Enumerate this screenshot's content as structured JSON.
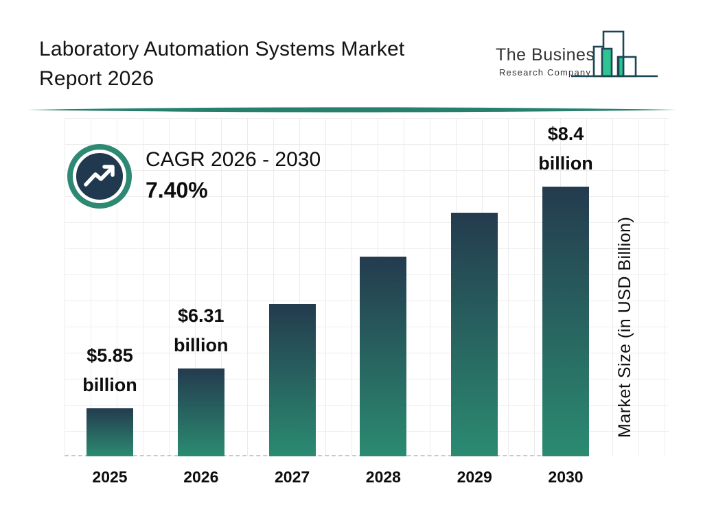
{
  "header": {
    "title_line1": "Laboratory Automation Systems Market",
    "title_line2": "Report 2026",
    "logo": {
      "line1": "The Business",
      "line2": "Research Company"
    }
  },
  "cagr": {
    "label": "CAGR 2026 - 2030",
    "value": "7.40%"
  },
  "chart_data": {
    "type": "bar",
    "title": "Laboratory Automation Systems Market Report 2026",
    "categories": [
      "2025",
      "2026",
      "2027",
      "2028",
      "2029",
      "2030"
    ],
    "values": [
      5.85,
      6.31,
      7.05,
      7.6,
      8.1,
      8.4
    ],
    "bar_labels": [
      [
        "$5.85",
        "billion"
      ],
      [
        "$6.31",
        "billion"
      ],
      [],
      [],
      [],
      [
        "$8.4",
        "billion"
      ]
    ],
    "xlabel": "",
    "ylabel": "Market Size (in USD Billion)",
    "ylim": [
      5.3,
      8.6
    ],
    "grid": true,
    "legend": false,
    "cagr_annotation": "CAGR 2026 - 2030 : 7.40%"
  },
  "colors": {
    "text": "#141414",
    "accent_teal": "#26806b",
    "badge_ring": "#2d8973",
    "badge_navy": "#20394e",
    "bar_top": "#243b4e",
    "bar_bottom": "#2b8b71",
    "logo_outline": "#1d4555",
    "logo_green": "#2ec492",
    "grid_line": "#ececec",
    "dash_line": "#c9c9c9"
  }
}
